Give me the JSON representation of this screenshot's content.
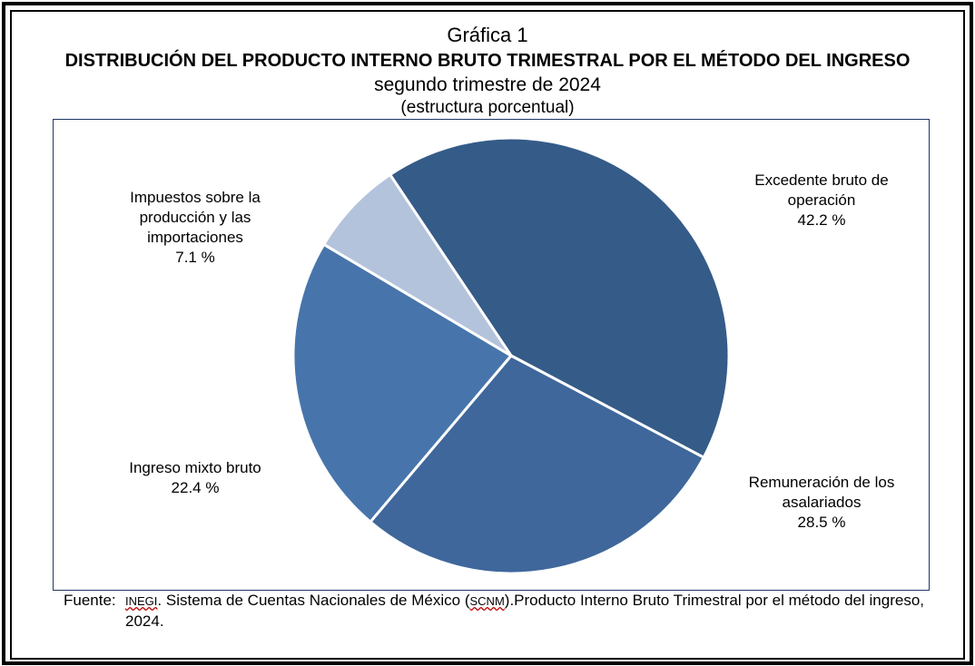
{
  "header": {
    "figure_label": "Gráfica 1",
    "title": "DISTRIBUCIÓN DEL PRODUCTO INTERNO BRUTO TRIMESTRAL POR EL MÉTODO DEL INGRESO",
    "subtitle": "segundo trimestre de 2024",
    "unit_note": "(estructura porcentual)"
  },
  "chart_data": {
    "type": "pie",
    "title": "DISTRIBUCIÓN DEL PRODUCTO INTERNO BRUTO TRIMESTRAL POR EL MÉTODO DEL INGRESO",
    "slices": [
      {
        "label_lines": [
          "Excedente bruto de",
          "operación"
        ],
        "value": 42.2,
        "value_text": "42.2 %",
        "color": "#355b88"
      },
      {
        "label_lines": [
          "Remuneración de los",
          "asalariados"
        ],
        "value": 28.5,
        "value_text": "28.5 %",
        "color": "#3f679b"
      },
      {
        "label_lines": [
          "Ingreso mixto bruto"
        ],
        "value": 22.4,
        "value_text": "22.4 %",
        "color": "#4775ab"
      },
      {
        "label_lines": [
          "Impuestos sobre la",
          "producción y las",
          "importaciones"
        ],
        "value": 7.1,
        "value_text": "7.1 %",
        "color": "#b4c3dc"
      }
    ]
  },
  "footer": {
    "source_label": "Fuente:",
    "source_org": "INEGI",
    "source_text_1": ". Sistema de Cuentas Nacionales de México (",
    "source_acronym": "SCNM",
    "source_text_2": ").Producto Interno Bruto Trimestral por el método del ingreso, 2024."
  }
}
